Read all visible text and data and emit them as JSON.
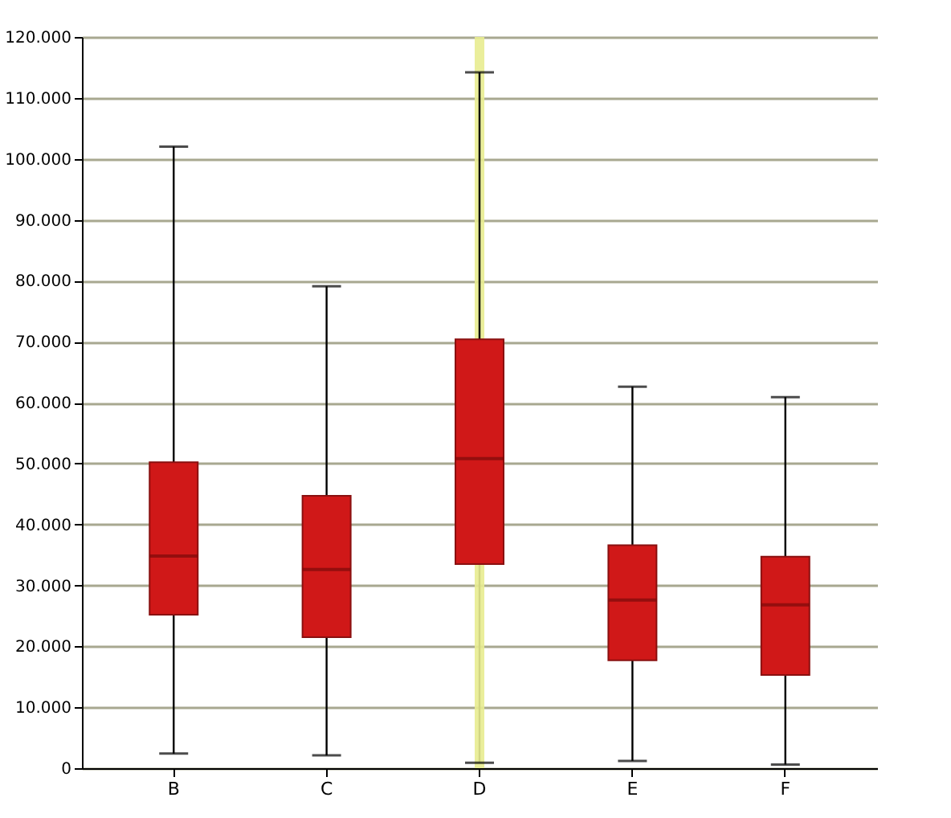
{
  "chart_data": {
    "type": "box",
    "categories": [
      "B",
      "C",
      "D",
      "E",
      "F"
    ],
    "boxes": [
      {
        "low": 2400,
        "q1": 25200,
        "median": 34800,
        "q3": 50200,
        "high": 102000
      },
      {
        "low": 2100,
        "q1": 21500,
        "median": 32600,
        "q3": 44700,
        "high": 79100
      },
      {
        "low": 900,
        "q1": 33500,
        "median": 50800,
        "q3": 70400,
        "high": 114200
      },
      {
        "low": 1200,
        "q1": 17700,
        "median": 27600,
        "q3": 36600,
        "high": 62600
      },
      {
        "low": 600,
        "q1": 15300,
        "median": 26800,
        "q3": 34700,
        "high": 60900
      }
    ],
    "color": "#d01818",
    "ylim": [
      0,
      120000
    ],
    "yticks": [
      {
        "value": 0,
        "label": "0"
      },
      {
        "value": 10000,
        "label": "10.000"
      },
      {
        "value": 20000,
        "label": "20.000"
      },
      {
        "value": 30000,
        "label": "30.000"
      },
      {
        "value": 40000,
        "label": "40.000"
      },
      {
        "value": 50000,
        "label": "50.000"
      },
      {
        "value": 60000,
        "label": "60.000"
      },
      {
        "value": 70000,
        "label": "70.000"
      },
      {
        "value": 80000,
        "label": "80.000"
      },
      {
        "value": 90000,
        "label": "90.000"
      },
      {
        "value": 100000,
        "label": "100.000"
      },
      {
        "value": 110000,
        "label": "110.000"
      },
      {
        "value": 120000,
        "label": "120.000"
      }
    ],
    "grid": "y",
    "ref_lines": [
      {
        "axis": "x",
        "value": "D",
        "color": "#e8ec90"
      }
    ]
  }
}
